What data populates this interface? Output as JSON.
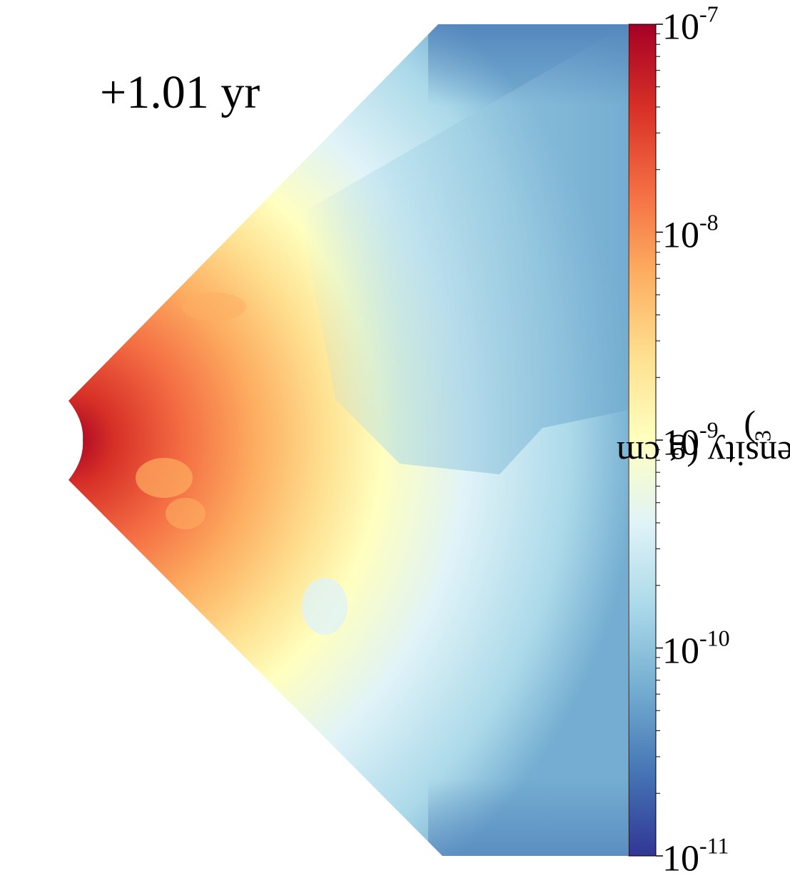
{
  "chart_data": {
    "type": "heatmap",
    "title": "",
    "annotation": "+1.01 yr",
    "colorbar": {
      "label": "Gas Density (g cm",
      "label_exp": "−3",
      "label_close": ")",
      "scale": "log",
      "range": [
        1e-11,
        1e-07
      ],
      "ticks": [
        {
          "value": 1e-07,
          "base": "10",
          "exp": "-7"
        },
        {
          "value": 1e-08,
          "base": "10",
          "exp": "-8"
        },
        {
          "value": 1e-09,
          "base": "10",
          "exp": "-9"
        },
        {
          "value": 1e-10,
          "base": "10",
          "exp": "-10"
        },
        {
          "value": 1e-11,
          "base": "10",
          "exp": "-11"
        }
      ],
      "colormap": "RdYlBu_r",
      "colors": [
        "#313695",
        "#4575b4",
        "#74add1",
        "#abd9e9",
        "#e0f3f8",
        "#ffffbf",
        "#fee090",
        "#fdae61",
        "#f46d43",
        "#d73027",
        "#a50026"
      ]
    },
    "grid": false,
    "legend": "none"
  }
}
